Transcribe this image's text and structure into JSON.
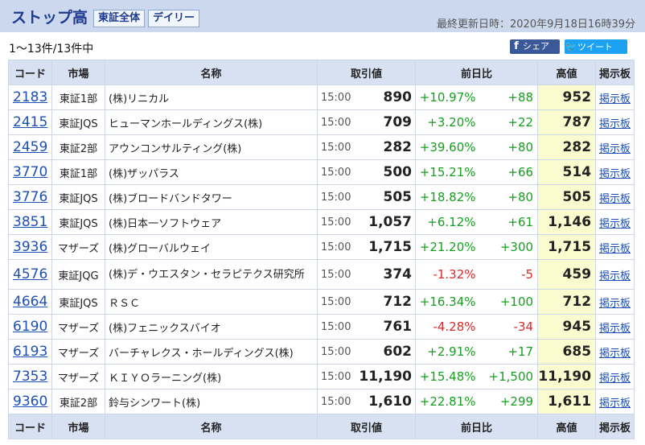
{
  "header": {
    "title": "ストップ高",
    "tags": [
      "東証全体",
      "デイリー"
    ],
    "updated": "最終更新日時：2020年9月18日16時39分"
  },
  "subbar": {
    "count": "1〜13件/13件中",
    "share_fb": "シェア",
    "share_tw": "ツイート",
    "icons": [
      "facebook-icon",
      "twitter-icon"
    ]
  },
  "columns": {
    "code": "コード",
    "market": "市場",
    "name": "名称",
    "price": "取引値",
    "change": "前日比",
    "high": "高値",
    "board": "掲示板"
  },
  "colors": {
    "up": "#15a01e",
    "down": "#e02828",
    "link": "#1d4fb4",
    "header_bg": "#ccd8ee",
    "high_bg": "#fafbcf"
  },
  "rows": [
    {
      "code": "2183",
      "market": "東証1部",
      "name": "(株)リニカル",
      "time": "15:00",
      "price": "890",
      "pct": "+10.97%",
      "diff": "+88",
      "high": "952",
      "board": "掲示板",
      "dir": "up"
    },
    {
      "code": "2415",
      "market": "東証JQS",
      "name": "ヒューマンホールディングス(株)",
      "time": "15:00",
      "price": "709",
      "pct": "+3.20%",
      "diff": "+22",
      "high": "787",
      "board": "掲示板",
      "dir": "up"
    },
    {
      "code": "2459",
      "market": "東証2部",
      "name": "アウンコンサルティング(株)",
      "time": "15:00",
      "price": "282",
      "pct": "+39.60%",
      "diff": "+80",
      "high": "282",
      "board": "掲示板",
      "dir": "up"
    },
    {
      "code": "3770",
      "market": "東証1部",
      "name": "(株)ザッパラス",
      "time": "15:00",
      "price": "500",
      "pct": "+15.21%",
      "diff": "+66",
      "high": "514",
      "board": "掲示板",
      "dir": "up"
    },
    {
      "code": "3776",
      "market": "東証JQS",
      "name": "(株)ブロードバンドタワー",
      "time": "15:00",
      "price": "505",
      "pct": "+18.82%",
      "diff": "+80",
      "high": "505",
      "board": "掲示板",
      "dir": "up"
    },
    {
      "code": "3851",
      "market": "東証JQS",
      "name": "(株)日本一ソフトウェア",
      "time": "15:00",
      "price": "1,057",
      "pct": "+6.12%",
      "diff": "+61",
      "high": "1,146",
      "board": "掲示板",
      "dir": "up"
    },
    {
      "code": "3936",
      "market": "マザーズ",
      "name": "(株)グローバルウェイ",
      "time": "15:00",
      "price": "1,715",
      "pct": "+21.20%",
      "diff": "+300",
      "high": "1,715",
      "board": "掲示板",
      "dir": "up"
    },
    {
      "code": "4576",
      "market": "東証JQG",
      "name": "(株)デ・ウエスタン・セラピテクス研究所",
      "time": "15:00",
      "price": "374",
      "pct": "-1.32%",
      "diff": "-5",
      "high": "459",
      "board": "掲示板",
      "dir": "down"
    },
    {
      "code": "4664",
      "market": "東証JQS",
      "name": "ＲＳＣ",
      "time": "15:00",
      "price": "712",
      "pct": "+16.34%",
      "diff": "+100",
      "high": "712",
      "board": "掲示板",
      "dir": "up"
    },
    {
      "code": "6190",
      "market": "マザーズ",
      "name": "(株)フェニックスバイオ",
      "time": "15:00",
      "price": "761",
      "pct": "-4.28%",
      "diff": "-34",
      "high": "945",
      "board": "掲示板",
      "dir": "down"
    },
    {
      "code": "6193",
      "market": "マザーズ",
      "name": "バーチャレクス・ホールディングス(株)",
      "time": "15:00",
      "price": "602",
      "pct": "+2.91%",
      "diff": "+17",
      "high": "685",
      "board": "掲示板",
      "dir": "up"
    },
    {
      "code": "7353",
      "market": "マザーズ",
      "name": "ＫＩＹＯラーニング(株)",
      "time": "15:00",
      "price": "11,190",
      "pct": "+15.48%",
      "diff": "+1,500",
      "high": "11,190",
      "board": "掲示板",
      "dir": "up"
    },
    {
      "code": "9360",
      "market": "東証2部",
      "name": "鈴与シンワート(株)",
      "time": "15:00",
      "price": "1,610",
      "pct": "+22.81%",
      "diff": "+299",
      "high": "1,611",
      "board": "掲示板",
      "dir": "up"
    }
  ]
}
